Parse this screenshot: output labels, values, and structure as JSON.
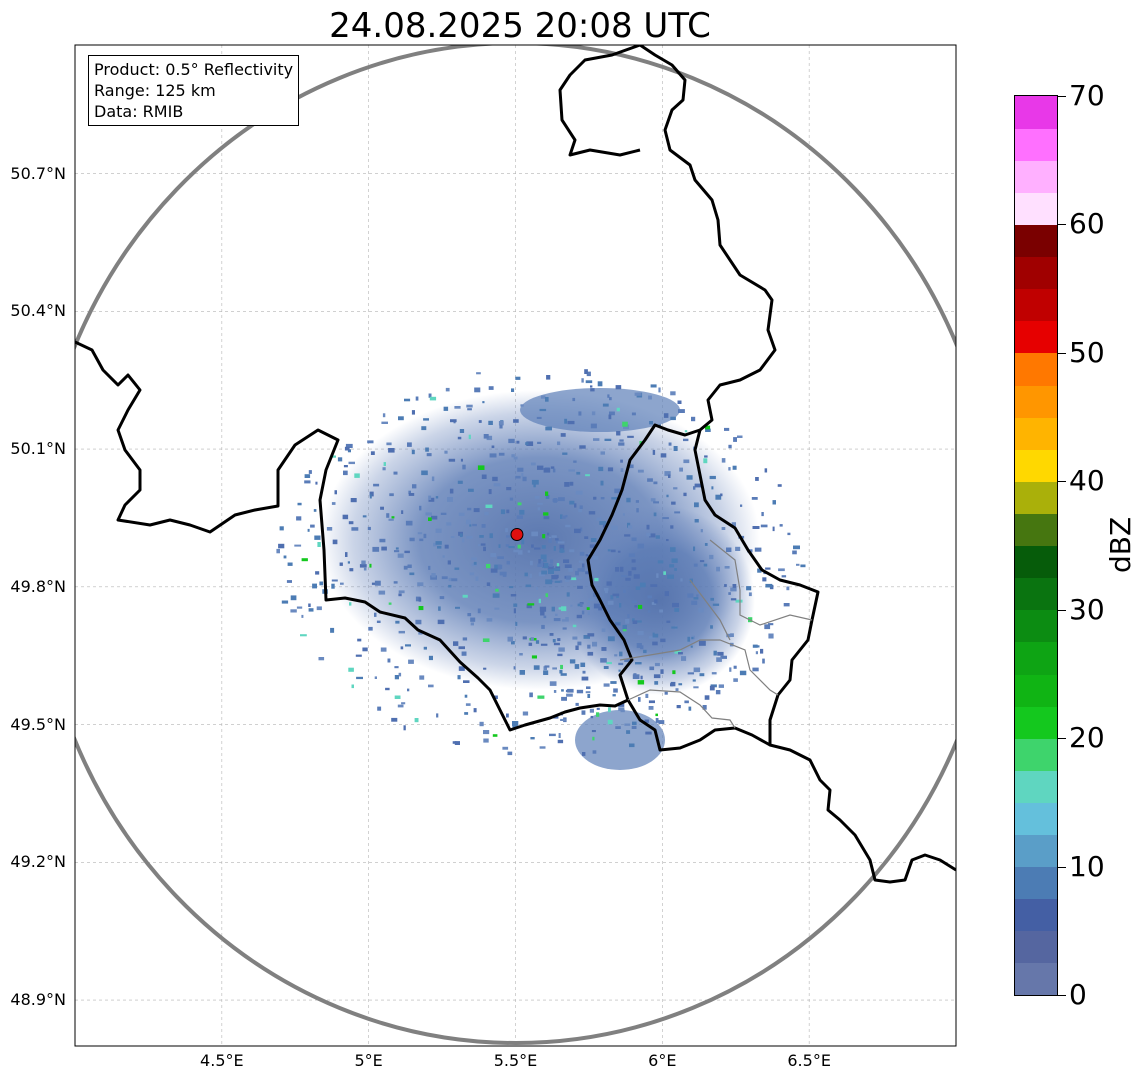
{
  "title": "24.08.2025 20:08 UTC",
  "info_box": {
    "product": "Product: 0.5° Reflectivity",
    "range": "Range: 125 km",
    "data": "Data: RMIB"
  },
  "map": {
    "extent": {
      "lon_min": 4.0,
      "lon_max": 7.0,
      "lat_min": 48.8,
      "lat_max": 50.98
    },
    "radar_site": {
      "lon": 5.505,
      "lat": 49.914,
      "color": "#e01010"
    },
    "range_ring_km": 125,
    "lat_ticks": [
      {
        "value": 50.7,
        "label": "50.7°N"
      },
      {
        "value": 50.4,
        "label": "50.4°N"
      },
      {
        "value": 50.1,
        "label": "50.1°N"
      },
      {
        "value": 49.8,
        "label": "49.8°N"
      },
      {
        "value": 49.5,
        "label": "49.5°N"
      },
      {
        "value": 49.2,
        "label": "49.2°N"
      },
      {
        "value": 48.9,
        "label": "48.9°N"
      }
    ],
    "lon_ticks": [
      {
        "value": 4.5,
        "label": "4.5°E"
      },
      {
        "value": 5.0,
        "label": "5°E"
      },
      {
        "value": 5.5,
        "label": "5.5°E"
      },
      {
        "value": 6.0,
        "label": "6°E"
      },
      {
        "value": 6.5,
        "label": "6.5°E"
      }
    ],
    "grid": true,
    "border_color": "#000000",
    "admin_border_color": "#808080",
    "ring_color": "#808080"
  },
  "colorbar": {
    "label": "dBZ",
    "min": 0,
    "max": 70,
    "tick_values": [
      0,
      10,
      20,
      30,
      40,
      50,
      60,
      70
    ],
    "tick_labels": [
      "0",
      "10",
      "20",
      "30",
      "40",
      "50",
      "60",
      "70"
    ],
    "colors": [
      "#6677aa",
      "#5566a0",
      "#445fa4",
      "#4c7cb4",
      "#5a9ec8",
      "#64c0dc",
      "#5fd6c0",
      "#3ed46c",
      "#14c81e",
      "#10b414",
      "#0ea414",
      "#0c8c12",
      "#0a7410",
      "#065c0a",
      "#467610",
      "#aab00a",
      "#ffd800",
      "#ffb400",
      "#ff9600",
      "#ff7800",
      "#e60000",
      "#c00000",
      "#a00000",
      "#7a0000",
      "#ffe0ff",
      "#ffb0ff",
      "#ff70ff",
      "#e838e8"
    ]
  }
}
